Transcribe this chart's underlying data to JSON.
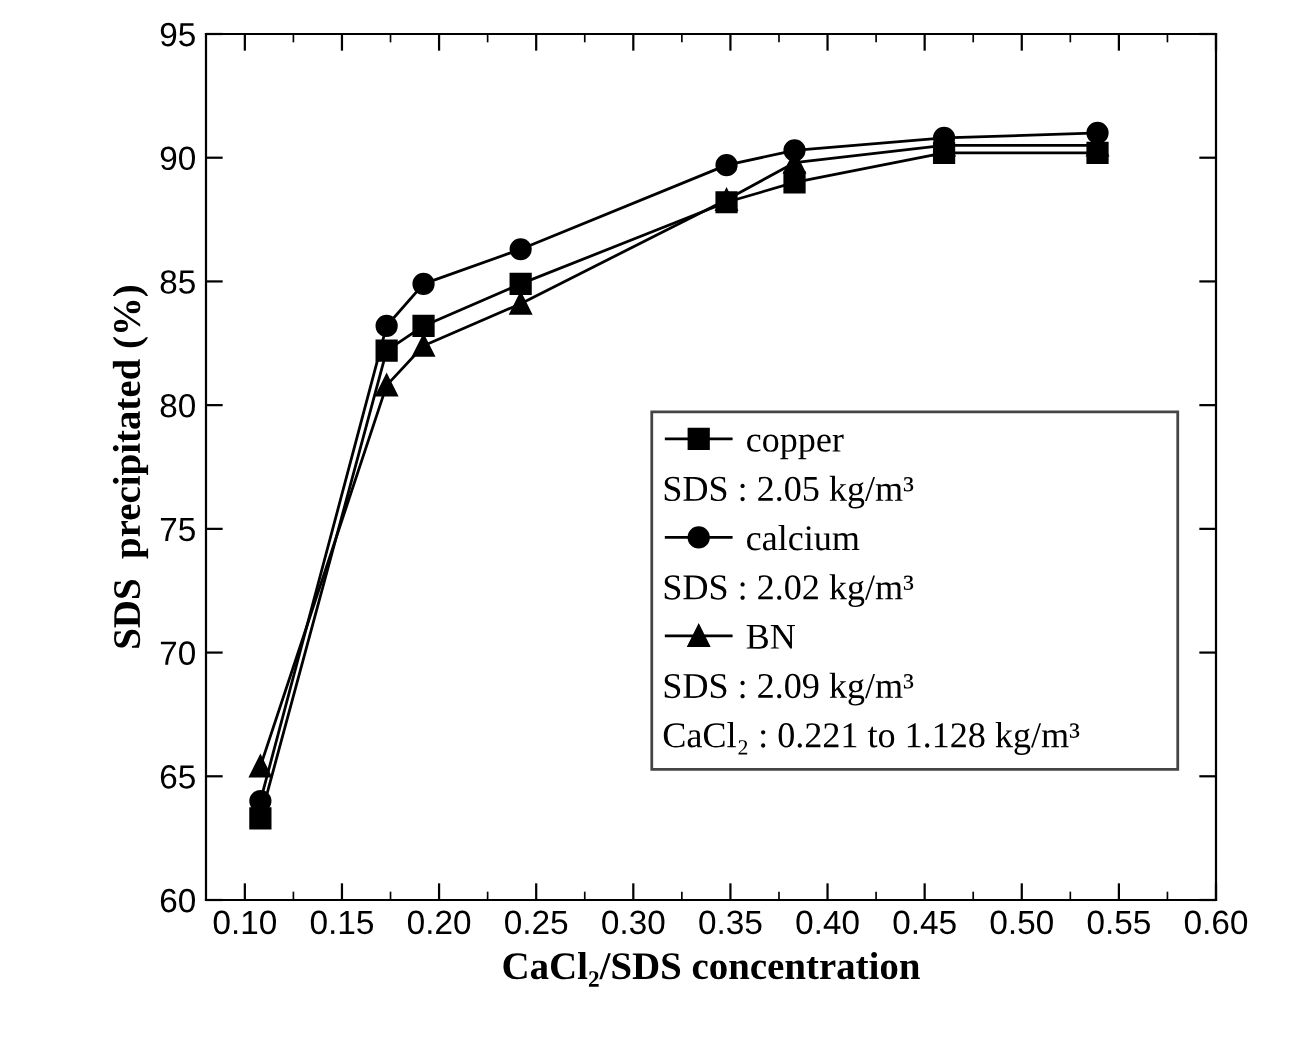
{
  "chart_data": {
    "type": "line",
    "xlabel": "CaCl₂/SDS concentration",
    "ylabel": "SDS  precipitated (%)",
    "x": [
      0.108,
      0.173,
      0.192,
      0.242,
      0.348,
      0.383,
      0.46,
      0.539
    ],
    "series": [
      {
        "name": "copper",
        "color": "#000000",
        "marker": "square",
        "values": [
          63.3,
          82.2,
          83.2,
          84.9,
          88.2,
          89.0,
          90.2,
          90.2
        ]
      },
      {
        "name": "calcium",
        "color": "#000000",
        "marker": "circle",
        "values": [
          64.0,
          83.2,
          84.9,
          86.3,
          89.7,
          90.3,
          90.8,
          91.0
        ]
      },
      {
        "name": "BN",
        "color": "#000000",
        "marker": "triangle",
        "values": [
          65.4,
          80.8,
          82.4,
          84.1,
          88.3,
          89.8,
          90.5,
          90.5
        ]
      }
    ],
    "annotations": [
      "SDS : 2.05 kg/m³",
      "SDS : 2.02 kg/m³",
      "SDS : 2.09 kg/m³",
      "CaCl₂ : 0.221 to 1.128 kg/m³"
    ],
    "xlim": [
      0.08,
      0.6
    ],
    "ylim": [
      60,
      95
    ],
    "xticks": [
      {
        "value": 0.1,
        "label": "0.10"
      },
      {
        "value": 0.15,
        "label": "0.15"
      },
      {
        "value": 0.2,
        "label": "0.20"
      },
      {
        "value": 0.25,
        "label": "0.25"
      },
      {
        "value": 0.3,
        "label": "0.30"
      },
      {
        "value": 0.35,
        "label": "0.35"
      },
      {
        "value": 0.4,
        "label": "0.40"
      },
      {
        "value": 0.45,
        "label": "0.45"
      },
      {
        "value": 0.5,
        "label": "0.50"
      },
      {
        "value": 0.55,
        "label": "0.55"
      },
      {
        "value": 0.6,
        "label": "0.60"
      }
    ],
    "yticks": [
      60,
      65,
      70,
      75,
      80,
      85,
      90,
      95
    ],
    "grid": false,
    "legend": "bottom right",
    "line_style": "solid"
  }
}
